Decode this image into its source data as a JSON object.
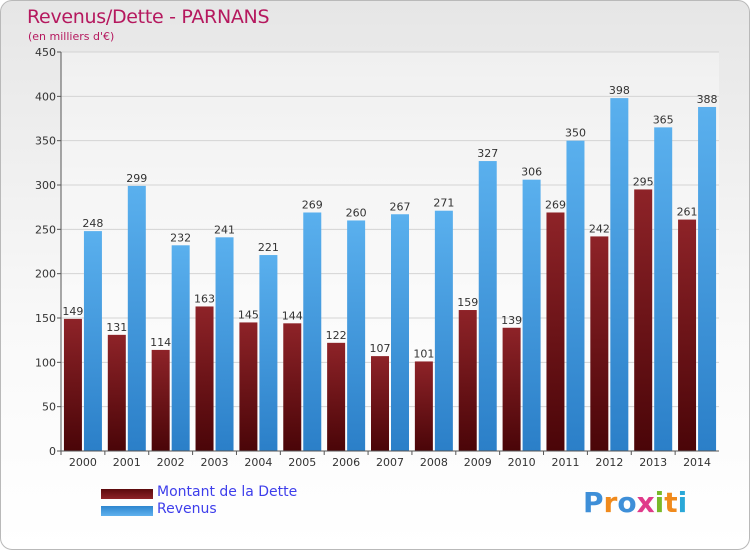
{
  "chart_data": {
    "type": "bar",
    "title": "Revenus/Dette - PARNANS",
    "subtitle": "(en milliers d'€)",
    "categories": [
      "2000",
      "2001",
      "2002",
      "2003",
      "2004",
      "2005",
      "2006",
      "2007",
      "2008",
      "2009",
      "2010",
      "2011",
      "2012",
      "2013",
      "2014"
    ],
    "series": [
      {
        "name": "Montant de la Dette",
        "color": "#7a1418",
        "values": [
          149,
          131,
          114,
          163,
          145,
          144,
          122,
          107,
          101,
          159,
          139,
          269,
          242,
          295,
          261
        ]
      },
      {
        "name": "Revenus",
        "color": "#3e9ce3",
        "values": [
          248,
          299,
          232,
          241,
          221,
          269,
          260,
          267,
          271,
          327,
          306,
          350,
          398,
          365,
          388
        ]
      }
    ],
    "ylim": [
      0,
      450
    ],
    "yticks": [
      0,
      50,
      100,
      150,
      200,
      250,
      300,
      350,
      400,
      450
    ],
    "grid": true,
    "legend_position": "bottom-left"
  },
  "branding": {
    "logo_text": "Proxiti",
    "logo_colors": [
      "#3e8fd8",
      "#f08a1c",
      "#3e8fd8",
      "#e03a8a",
      "#79b92a",
      "#f08a1c",
      "#2aa8d8"
    ]
  }
}
